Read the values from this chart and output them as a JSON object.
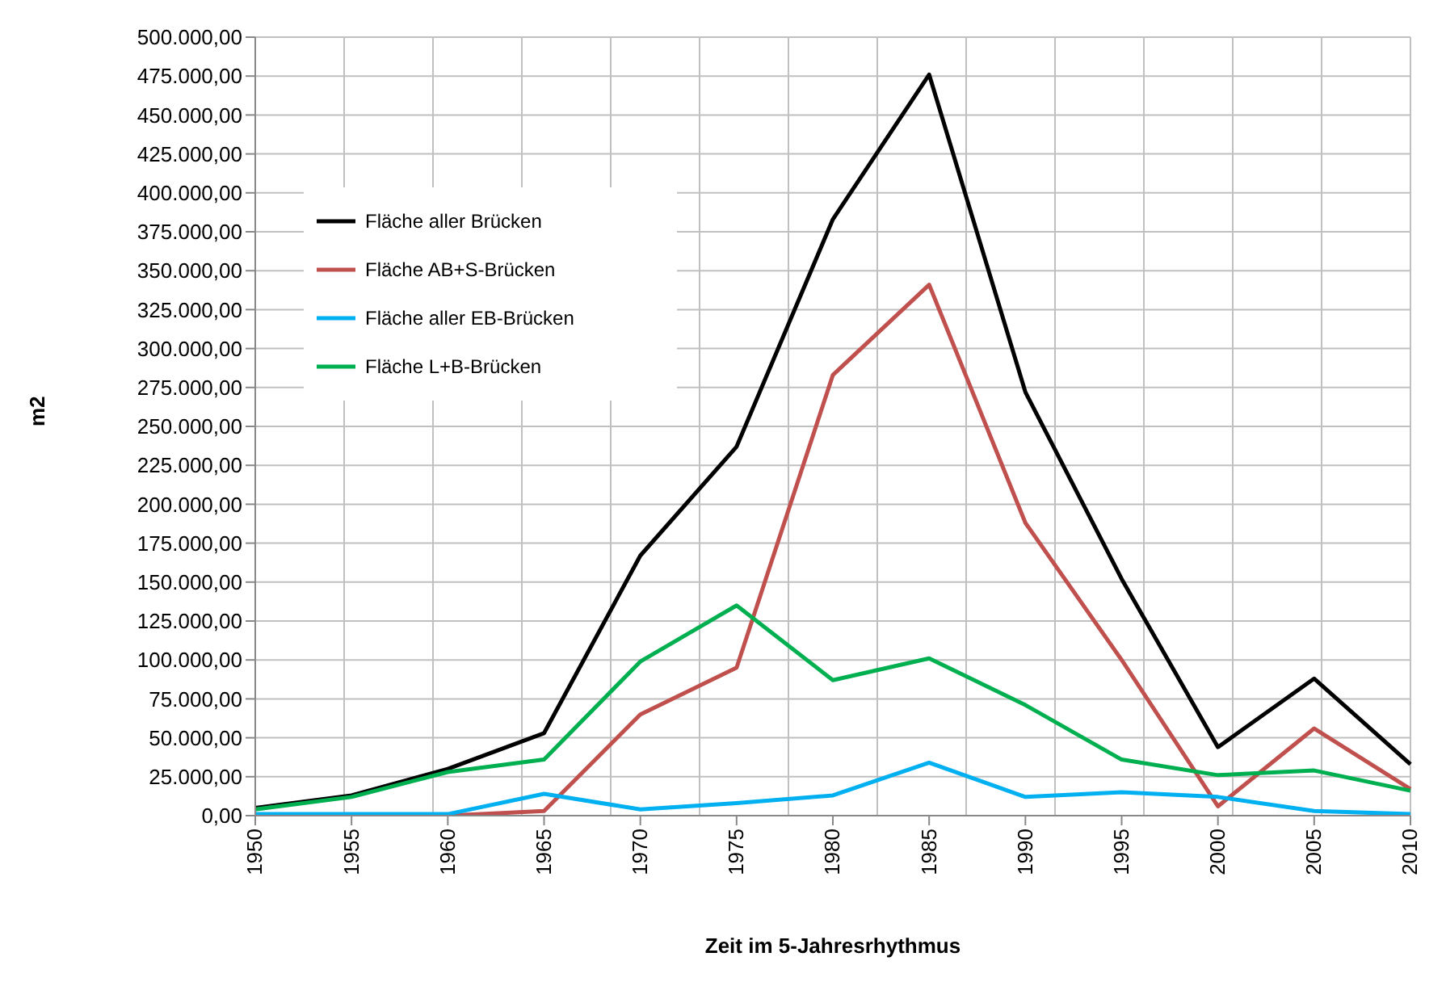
{
  "chart_data": {
    "type": "line",
    "xlabel": "Zeit im 5-Jahresrhythmus",
    "ylabel": "m2",
    "categories": [
      "1950",
      "1955",
      "1960",
      "1965",
      "1970",
      "1975",
      "1980",
      "1985",
      "1990",
      "1995",
      "2000",
      "2005",
      "2010"
    ],
    "series": [
      {
        "name": "Fläche aller Brücken",
        "color": "#000000",
        "values": [
          5000,
          13000,
          30000,
          53000,
          167000,
          237000,
          383000,
          476000,
          272000,
          152000,
          44000,
          88000,
          33000
        ]
      },
      {
        "name": "Fläche AB+S-Brücken",
        "color": "#c0504d",
        "values": [
          0,
          0,
          0,
          3000,
          65000,
          95000,
          283000,
          341000,
          188000,
          100000,
          6000,
          56000,
          17000
        ]
      },
      {
        "name": "Fläche aller EB-Brücken",
        "color": "#00b0f0",
        "values": [
          1000,
          1000,
          1000,
          14000,
          4000,
          8000,
          13000,
          34000,
          12000,
          15000,
          12000,
          3000,
          1000
        ]
      },
      {
        "name": "Fläche L+B-Brücken",
        "color": "#00b050",
        "values": [
          4000,
          12000,
          28000,
          36000,
          99000,
          135000,
          87000,
          101000,
          71000,
          36000,
          26000,
          29000,
          16000
        ]
      }
    ],
    "ylim": [
      0,
      500000
    ],
    "yticks": [
      {
        "value": 0,
        "label": "0,00"
      },
      {
        "value": 25000,
        "label": "25.000,00"
      },
      {
        "value": 50000,
        "label": "50.000,00"
      },
      {
        "value": 75000,
        "label": "75.000,00"
      },
      {
        "value": 100000,
        "label": "100.000,00"
      },
      {
        "value": 125000,
        "label": "125.000,00"
      },
      {
        "value": 150000,
        "label": "150.000,00"
      },
      {
        "value": 175000,
        "label": "175.000,00"
      },
      {
        "value": 200000,
        "label": "200.000,00"
      },
      {
        "value": 225000,
        "label": "225.000,00"
      },
      {
        "value": 250000,
        "label": "250.000,00"
      },
      {
        "value": 275000,
        "label": "275.000,00"
      },
      {
        "value": 300000,
        "label": "300.000,00"
      },
      {
        "value": 325000,
        "label": "325.000,00"
      },
      {
        "value": 350000,
        "label": "350.000,00"
      },
      {
        "value": 375000,
        "label": "375.000,00"
      },
      {
        "value": 400000,
        "label": "400.000,00"
      },
      {
        "value": 425000,
        "label": "425.000,00"
      },
      {
        "value": 450000,
        "label": "450.000,00"
      },
      {
        "value": 475000,
        "label": "475.000,00"
      },
      {
        "value": 500000,
        "label": "500.000,00"
      }
    ],
    "grid": true,
    "legend": "top left",
    "marker": "none",
    "line_style": "solid"
  }
}
